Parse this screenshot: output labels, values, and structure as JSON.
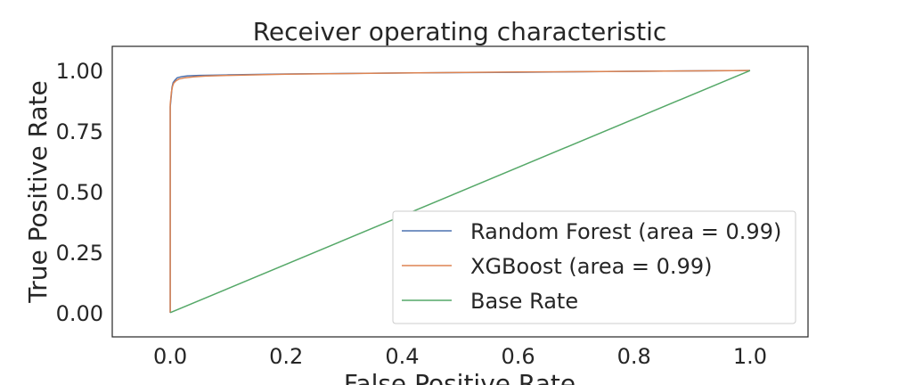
{
  "chart_data": {
    "type": "line",
    "title": "Receiver operating characteristic",
    "xlabel": "False Positive Rate",
    "ylabel": "True Positive Rate",
    "xlim": [
      -0.1,
      1.1
    ],
    "ylim": [
      -0.1,
      1.1
    ],
    "xticks": [
      "0.0",
      "0.2",
      "0.4",
      "0.6",
      "0.8",
      "1.0"
    ],
    "yticks": [
      "0.00",
      "0.25",
      "0.50",
      "0.75",
      "1.00"
    ],
    "grid": false,
    "legend_position": "lower-right",
    "series": [
      {
        "name": "Random Forest (area = 0.99)",
        "color": "#4c72b0",
        "x": [
          0.0,
          0.0,
          0.002,
          0.003,
          0.005,
          0.008,
          0.012,
          0.02,
          0.03,
          0.05,
          0.1,
          0.2,
          0.4,
          0.6,
          0.8,
          1.0
        ],
        "y": [
          0.0,
          0.85,
          0.9,
          0.93,
          0.95,
          0.96,
          0.97,
          0.975,
          0.978,
          0.98,
          0.982,
          0.986,
          0.99,
          0.993,
          0.997,
          1.0
        ]
      },
      {
        "name": "XGBoost (area = 0.99)",
        "color": "#dd8452",
        "x": [
          0.0,
          0.0,
          0.002,
          0.004,
          0.006,
          0.01,
          0.015,
          0.025,
          0.04,
          0.06,
          0.1,
          0.2,
          0.4,
          0.6,
          0.8,
          1.0
        ],
        "y": [
          0.0,
          0.86,
          0.91,
          0.935,
          0.948,
          0.958,
          0.965,
          0.97,
          0.974,
          0.977,
          0.98,
          0.985,
          0.99,
          0.994,
          0.997,
          1.0
        ]
      },
      {
        "name": "Base Rate",
        "color": "#55a868",
        "x": [
          0.0,
          1.0
        ],
        "y": [
          0.0,
          1.0
        ]
      }
    ]
  }
}
